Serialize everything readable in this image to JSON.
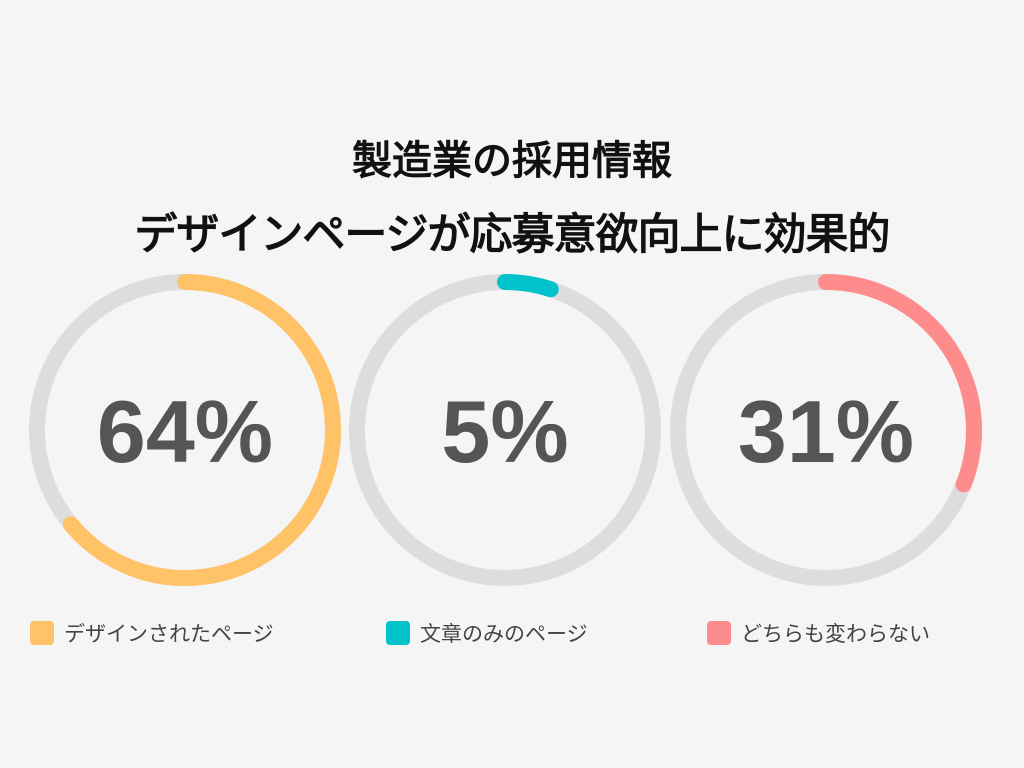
{
  "chart_data": {
    "type": "donut",
    "title": [
      "製造業の採用情報",
      "デザインページが応募意欲向上に効果的"
    ],
    "series": [
      {
        "name": "デザインされたページ",
        "value": 64,
        "label": "64%",
        "color": "#FFC266"
      },
      {
        "name": "文章のみのページ",
        "value": 5,
        "label": "5%",
        "color": "#00C2CB"
      },
      {
        "name": "どちらも変わらない",
        "value": 31,
        "label": "31%",
        "color": "#FF8C8C"
      }
    ],
    "track_color": "#DDDDDD",
    "label_color": "#555555",
    "legend_position": "bottom"
  }
}
